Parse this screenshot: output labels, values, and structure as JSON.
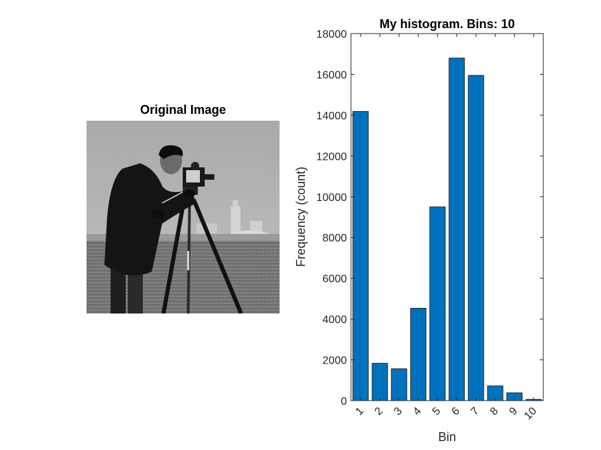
{
  "figure": {
    "image_panel": {
      "title": "Original Image",
      "image_icon": "cameraman-photo"
    }
  },
  "chart_data": {
    "type": "bar",
    "title": "My histogram. Bins: 10",
    "xlabel": "Bin",
    "ylabel": "Frequency (count)",
    "categories": [
      "1",
      "2",
      "3",
      "4",
      "5",
      "6",
      "7",
      "8",
      "9",
      "10"
    ],
    "values": [
      14180,
      1830,
      1560,
      4530,
      9500,
      16800,
      15950,
      720,
      380,
      60
    ],
    "ylim": [
      0,
      18000
    ],
    "yticks": [
      "0",
      "2000",
      "4000",
      "6000",
      "8000",
      "10000",
      "12000",
      "14000",
      "16000",
      "18000"
    ],
    "bar_color": "#0072BD",
    "grid": false,
    "legend": "none"
  }
}
